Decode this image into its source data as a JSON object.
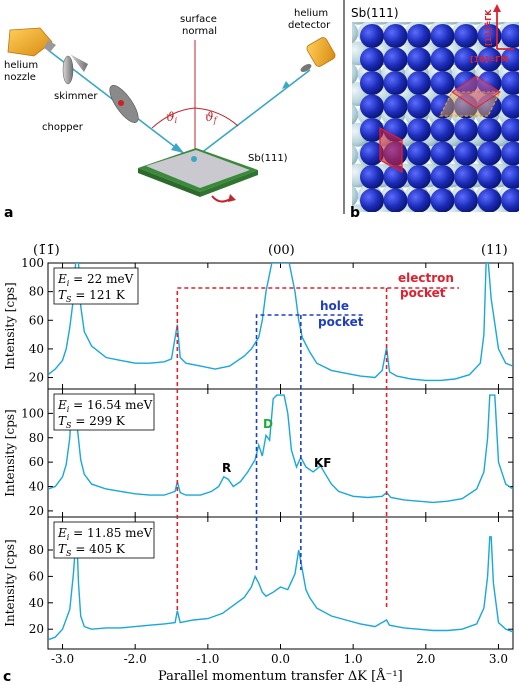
{
  "panel_a": {
    "letter": "a",
    "labels": {
      "nozzle": [
        "helium",
        "nozzle"
      ],
      "skimmer": "skimmer",
      "chopper": "chopper",
      "surface_normal": [
        "surface",
        "normal"
      ],
      "detector": [
        "helium",
        "detector"
      ],
      "sample": "Sb(111)",
      "theta_i": "ϑ",
      "theta_i_sub": "i",
      "theta_f": "ϑ",
      "theta_f_sub": "f"
    }
  },
  "panel_b": {
    "letter": "b",
    "title": "Sb(111)",
    "dir1": "[11]≙ΓK",
    "dir2": "[10]≙ΓM"
  },
  "panel_c": {
    "letter": "c",
    "top_ticks": [
      "(1̄1̄)",
      "(00)",
      "(11)"
    ],
    "annotations": {
      "electron": [
        "electron",
        "pocket"
      ],
      "hole": [
        "hole",
        "pocket"
      ],
      "D": "D",
      "R": "R",
      "KF": "KF"
    },
    "colors": {
      "curve": "#1aa7d9",
      "electron": "#e0202e",
      "hole": "#1f3fbf",
      "D": "#22aa3a",
      "sample_green": "#3b8a3b",
      "nozzle_orange": "#e8a020",
      "beam": "#3aa7c4"
    }
  },
  "chart_data": {
    "type": "line",
    "xlabel": "Parallel momentum transfer ΔK [Å⁻¹]",
    "xlim": [
      -3.2,
      3.2
    ],
    "xticks": [
      "-3.0",
      "-2.0",
      "-1.0",
      "0.0",
      "1.0",
      "2.0",
      "3.0"
    ],
    "ylabel": "Intensity [cps]",
    "electron_pocket_x": [
      -1.42,
      1.46
    ],
    "hole_pocket_x": [
      -0.33,
      0.28
    ],
    "panels": [
      {
        "info_line1": "E",
        "info_sub1": "i",
        "info_val1": " = 22 meV",
        "info_line2": "T",
        "info_sub2": "S",
        "info_val2": " = 121 K",
        "ylim": [
          12,
          100
        ],
        "yticks": [
          "20",
          "40",
          "60",
          "80",
          "100"
        ],
        "x": [
          -3.2,
          -3.1,
          -3.0,
          -2.95,
          -2.9,
          -2.85,
          -2.82,
          -2.8,
          -2.78,
          -2.75,
          -2.7,
          -2.6,
          -2.5,
          -2.4,
          -2.2,
          -2.0,
          -1.8,
          -1.6,
          -1.5,
          -1.42,
          -1.38,
          -1.3,
          -1.1,
          -0.9,
          -0.7,
          -0.5,
          -0.4,
          -0.3,
          -0.25,
          -0.2,
          -0.12,
          -0.05,
          0.0,
          0.05,
          0.12,
          0.2,
          0.25,
          0.3,
          0.4,
          0.5,
          0.7,
          0.9,
          1.1,
          1.3,
          1.4,
          1.46,
          1.5,
          1.6,
          1.8,
          2.0,
          2.2,
          2.4,
          2.6,
          2.75,
          2.8,
          2.83,
          2.86,
          2.9,
          3.0,
          3.1,
          3.2
        ],
        "y": [
          22,
          26,
          32,
          40,
          55,
          75,
          100,
          100,
          100,
          70,
          52,
          42,
          38,
          34,
          32,
          30,
          30,
          31,
          33,
          57,
          34,
          30,
          28,
          26,
          28,
          35,
          40,
          48,
          60,
          80,
          100,
          100,
          100,
          100,
          100,
          80,
          60,
          48,
          38,
          30,
          25,
          23,
          21,
          20,
          25,
          41,
          24,
          21,
          19,
          18,
          18,
          19,
          22,
          30,
          50,
          100,
          100,
          75,
          40,
          30,
          28
        ]
      },
      {
        "info_line1": "E",
        "info_sub1": "i",
        "info_val1": " = 16.54 meV",
        "info_line2": "T",
        "info_sub2": "S",
        "info_val2": " = 299 K",
        "ylim": [
          15,
          120
        ],
        "yticks": [
          "20",
          "40",
          "60",
          "80",
          "100"
        ],
        "x": [
          -3.2,
          -3.1,
          -3.0,
          -2.95,
          -2.9,
          -2.87,
          -2.85,
          -2.83,
          -2.8,
          -2.75,
          -2.7,
          -2.6,
          -2.4,
          -2.2,
          -2.0,
          -1.8,
          -1.6,
          -1.45,
          -1.42,
          -1.38,
          -1.3,
          -1.1,
          -0.95,
          -0.85,
          -0.78,
          -0.72,
          -0.65,
          -0.55,
          -0.45,
          -0.35,
          -0.3,
          -0.25,
          -0.2,
          -0.15,
          -0.1,
          -0.05,
          0.0,
          0.05,
          0.1,
          0.15,
          0.22,
          0.28,
          0.35,
          0.45,
          0.55,
          0.62,
          0.7,
          0.8,
          1.0,
          1.2,
          1.4,
          1.46,
          1.52,
          1.7,
          1.9,
          2.1,
          2.3,
          2.5,
          2.7,
          2.8,
          2.85,
          2.88,
          2.92,
          2.95,
          3.0,
          3.1,
          3.2
        ],
        "y": [
          38,
          40,
          48,
          58,
          80,
          115,
          115,
          115,
          90,
          62,
          50,
          42,
          38,
          36,
          34,
          33,
          33,
          36,
          44,
          35,
          33,
          33,
          36,
          40,
          48,
          46,
          40,
          44,
          52,
          62,
          74,
          65,
          82,
          78,
          112,
          115,
          115,
          115,
          100,
          70,
          56,
          64,
          56,
          52,
          57,
          50,
          42,
          36,
          32,
          31,
          32,
          35,
          31,
          29,
          28,
          27,
          28,
          30,
          38,
          52,
          80,
          115,
          115,
          115,
          60,
          42,
          38
        ]
      },
      {
        "info_line1": "E",
        "info_sub1": "i",
        "info_val1": " = 11.85 meV",
        "info_line2": "T",
        "info_sub2": "S",
        "info_val2": " = 405 K",
        "ylim": [
          5,
          105
        ],
        "yticks": [
          "20",
          "40",
          "60",
          "80"
        ],
        "x": [
          -3.2,
          -3.1,
          -3.0,
          -2.9,
          -2.85,
          -2.82,
          -2.8,
          -2.78,
          -2.75,
          -2.7,
          -2.6,
          -2.4,
          -2.2,
          -2.0,
          -1.8,
          -1.6,
          -1.45,
          -1.42,
          -1.38,
          -1.2,
          -1.0,
          -0.8,
          -0.6,
          -0.5,
          -0.4,
          -0.35,
          -0.3,
          -0.25,
          -0.2,
          -0.1,
          0.0,
          0.1,
          0.2,
          0.25,
          0.3,
          0.35,
          0.4,
          0.5,
          0.7,
          0.9,
          1.1,
          1.3,
          1.46,
          1.5,
          1.7,
          1.9,
          2.1,
          2.3,
          2.5,
          2.7,
          2.8,
          2.85,
          2.88,
          2.9,
          2.93,
          3.0,
          3.1,
          3.2
        ],
        "y": [
          12,
          14,
          20,
          35,
          62,
          84,
          84,
          55,
          30,
          22,
          20,
          21,
          21,
          22,
          23,
          24,
          25,
          34,
          25,
          27,
          28,
          32,
          40,
          44,
          52,
          60,
          55,
          48,
          45,
          48,
          52,
          50,
          62,
          80,
          65,
          50,
          44,
          36,
          30,
          27,
          24,
          22,
          27,
          23,
          21,
          20,
          19,
          19,
          20,
          24,
          36,
          60,
          90,
          90,
          55,
          25,
          20,
          18
        ]
      }
    ]
  }
}
